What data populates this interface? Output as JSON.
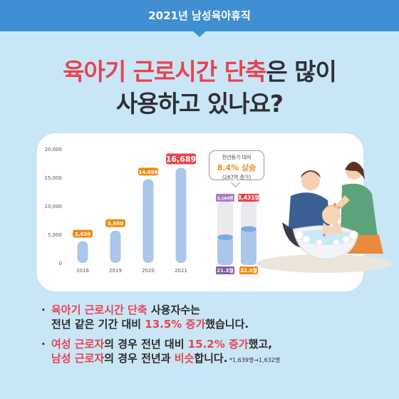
{
  "banner": {
    "title": "2021년 남성육아휴직"
  },
  "headline": {
    "line1_highlight": "육아기 근로시간 단축",
    "line1_rest": "은 많이",
    "line2": "사용하고 있나요?"
  },
  "chart_data": {
    "type": "bar",
    "categories": [
      "2018",
      "2019",
      "2020",
      "2021"
    ],
    "values": [
      3820,
      5660,
      14698,
      16689
    ],
    "data_labels": [
      "3,820",
      "5,660",
      "14,698",
      "16,689"
    ],
    "ylim": [
      0,
      20000
    ],
    "yticks": [
      0,
      5000,
      10000,
      15000,
      20000
    ],
    "ytick_labels": [
      "0",
      "5,000",
      "10,000",
      "15,000",
      "20,000"
    ],
    "highlight_index": 3,
    "grid": false,
    "colors": {
      "bar": "#aac6ea",
      "label_normal": "#f08a12",
      "label_highlight": "#e8434f"
    }
  },
  "duration_chart": {
    "callout": {
      "top": "전년동기 대비",
      "value": "8.4% 상승",
      "bottom": "(267명 증가)"
    },
    "bars": [
      {
        "top_label": "3,164명",
        "bottom_label": "21.3월",
        "fill_fraction": 0.45,
        "top_color": "#a97bc4",
        "bottom_color": "#7f5ba5"
      },
      {
        "top_label": "3,431명",
        "bottom_label": "22.3월",
        "fill_fraction": 0.58,
        "top_color": "#e8434f",
        "bottom_color": "#f08a12"
      }
    ]
  },
  "illustration": {
    "name": "parents-bathing-baby"
  },
  "bullets": [
    {
      "marker": "·",
      "parts": [
        {
          "text": "육아기 근로시간 단축",
          "red": true
        },
        {
          "text": " 사용자수는",
          "red": false
        }
      ],
      "line2": [
        {
          "text": "전년 같은 기간 대비 ",
          "red": false
        },
        {
          "text": "13.5% 증가",
          "red": true
        },
        {
          "text": "했습니다.",
          "red": false
        }
      ]
    },
    {
      "marker": "·",
      "parts": [
        {
          "text": "여성 근로자",
          "red": true
        },
        {
          "text": "의 경우 전년 대비 ",
          "red": false
        },
        {
          "text": "15.2% 증가",
          "red": true
        },
        {
          "text": "했고,",
          "red": false
        }
      ],
      "line2": [
        {
          "text": "남성 근로자",
          "red": true
        },
        {
          "text": "의 경우 전년과 ",
          "red": false
        },
        {
          "text": "비슷",
          "red": true
        },
        {
          "text": "합니다.",
          "red": false
        }
      ],
      "footnote": " *1,639명→1,632명"
    }
  ]
}
